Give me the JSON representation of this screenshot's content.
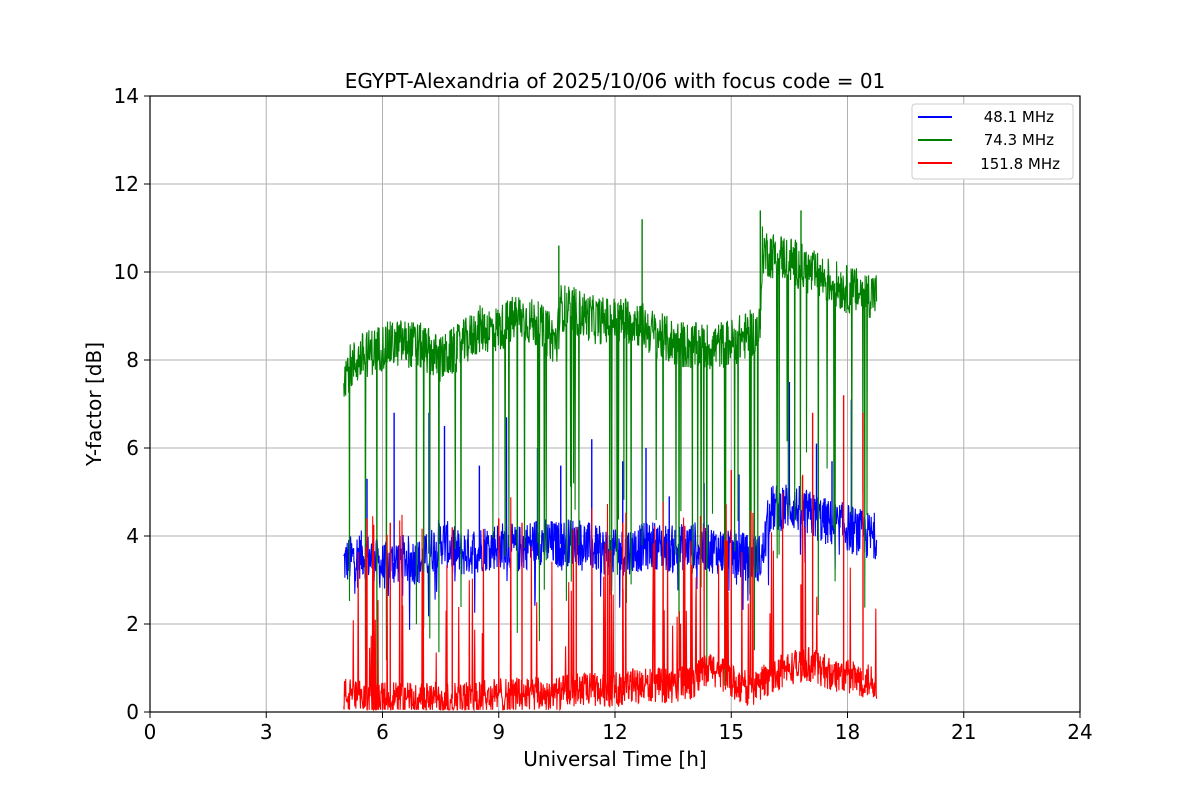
{
  "chart_data": {
    "type": "line",
    "title": "EGYPT-Alexandria of 2025/10/06 with focus code = 01",
    "xlabel": "Universal Time [h]",
    "ylabel": "Y-factor [dB]",
    "xlim": [
      0,
      24
    ],
    "ylim": [
      0,
      14
    ],
    "xticks": [
      0,
      3,
      6,
      9,
      12,
      15,
      18,
      21,
      24
    ],
    "yticks": [
      0,
      2,
      4,
      6,
      8,
      10,
      12,
      14
    ],
    "grid": true,
    "legend_position": "top-right",
    "series": [
      {
        "name": "48.1 MHz",
        "color": "#0000ff",
        "x": [
          5.0,
          5.5,
          6.0,
          6.5,
          7.0,
          7.5,
          8.0,
          8.5,
          9.0,
          9.5,
          10.0,
          10.5,
          11.0,
          11.5,
          12.0,
          12.5,
          13.0,
          13.5,
          14.0,
          14.5,
          15.0,
          15.5,
          15.8,
          16.0,
          16.5,
          17.0,
          17.5,
          18.0,
          18.5,
          18.75
        ],
        "values": [
          3.4,
          3.6,
          3.3,
          3.5,
          3.4,
          3.9,
          3.6,
          3.7,
          3.8,
          3.7,
          3.9,
          3.8,
          3.9,
          3.7,
          3.6,
          3.7,
          3.8,
          3.7,
          3.8,
          3.7,
          3.6,
          3.5,
          3.5,
          4.6,
          4.7,
          4.5,
          4.3,
          4.2,
          4.0,
          4.0
        ],
        "spike_x": [
          5.6,
          6.3,
          7.2,
          7.6,
          8.5,
          9.2,
          10.0,
          10.6,
          11.4,
          12.2,
          12.8,
          13.4,
          14.3,
          15.2,
          16.5,
          17.2,
          17.6,
          18.1
        ],
        "spike_values": [
          5.3,
          6.8,
          6.8,
          6.5,
          5.6,
          6.7,
          6.0,
          5.6,
          6.2,
          5.7,
          6.0,
          4.9,
          5.2,
          5.4,
          7.5,
          6.1,
          5.7,
          7.1
        ]
      },
      {
        "name": "74.3 MHz",
        "color": "#008000",
        "x": [
          5.0,
          5.5,
          6.0,
          6.5,
          7.0,
          7.5,
          8.0,
          8.5,
          9.0,
          9.5,
          10.0,
          10.5,
          10.6,
          11.0,
          11.5,
          12.0,
          12.5,
          13.0,
          13.5,
          14.0,
          14.5,
          15.0,
          15.5,
          15.75,
          15.8,
          16.0,
          16.5,
          17.0,
          17.5,
          18.0,
          18.5,
          18.75
        ],
        "values": [
          7.7,
          8.1,
          8.3,
          8.4,
          8.3,
          8.0,
          8.3,
          8.7,
          8.7,
          9.0,
          8.8,
          8.4,
          9.2,
          9.1,
          8.9,
          8.9,
          8.9,
          8.6,
          8.4,
          8.3,
          8.3,
          8.4,
          8.6,
          8.7,
          10.5,
          10.4,
          10.3,
          10.0,
          9.8,
          9.6,
          9.5,
          9.5
        ],
        "spike_x": [
          10.55,
          12.7,
          15.75,
          16.8
        ],
        "spike_values": [
          10.6,
          11.2,
          11.4,
          11.4
        ]
      },
      {
        "name": "151.8 MHz",
        "color": "#ff0000",
        "x": [
          5.0,
          5.5,
          6.0,
          6.5,
          7.0,
          7.5,
          8.0,
          8.5,
          9.0,
          9.5,
          10.0,
          10.5,
          11.0,
          11.5,
          12.0,
          12.5,
          13.0,
          13.5,
          14.0,
          14.5,
          15.0,
          15.5,
          16.0,
          16.5,
          17.0,
          17.5,
          18.0,
          18.5,
          18.75
        ],
        "values": [
          0.4,
          0.3,
          0.3,
          0.3,
          0.3,
          0.3,
          0.3,
          0.3,
          0.4,
          0.4,
          0.4,
          0.4,
          0.5,
          0.5,
          0.5,
          0.6,
          0.6,
          0.6,
          0.7,
          1.0,
          0.7,
          0.5,
          0.8,
          1.0,
          1.1,
          0.9,
          0.8,
          0.7,
          0.7
        ],
        "spike_x": [
          5.6,
          6.2,
          7.8,
          9.0,
          9.6,
          11.0,
          12.2,
          14.3,
          15.0,
          16.8,
          17.1,
          17.9,
          18.4
        ],
        "spike_values": [
          4.4,
          4.3,
          4.2,
          4.4,
          4.3,
          4.2,
          4.3,
          4.2,
          5.5,
          2.9,
          6.8,
          7.2,
          6.8
        ]
      }
    ]
  }
}
